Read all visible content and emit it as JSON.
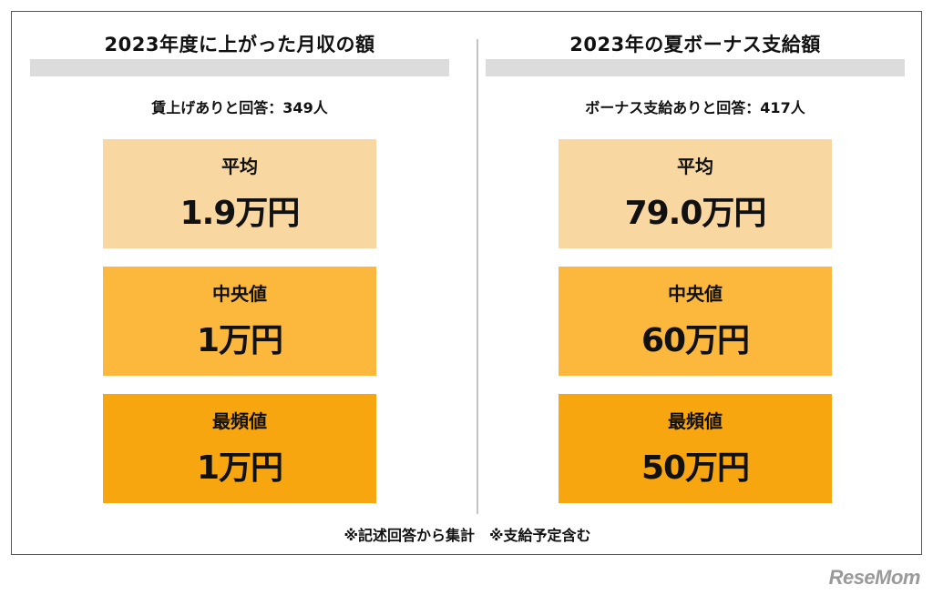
{
  "left": {
    "title": "2023年度に上がった月収の額",
    "respondents": "賃上げありと回答：349人",
    "stats": [
      {
        "label": "平均",
        "value": "1.9万円"
      },
      {
        "label": "中央値",
        "value": "1万円"
      },
      {
        "label": "最頻値",
        "value": "1万円"
      }
    ]
  },
  "right": {
    "title": "2023年の夏ボーナス支給額",
    "respondents": "ボーナス支給ありと回答：417人",
    "stats": [
      {
        "label": "平均",
        "value": "79.0万円"
      },
      {
        "label": "中央値",
        "value": "60万円"
      },
      {
        "label": "最頻値",
        "value": "50万円"
      }
    ]
  },
  "footnote": "※記述回答から集計　※支給予定含む",
  "logo": "ReseMom"
}
